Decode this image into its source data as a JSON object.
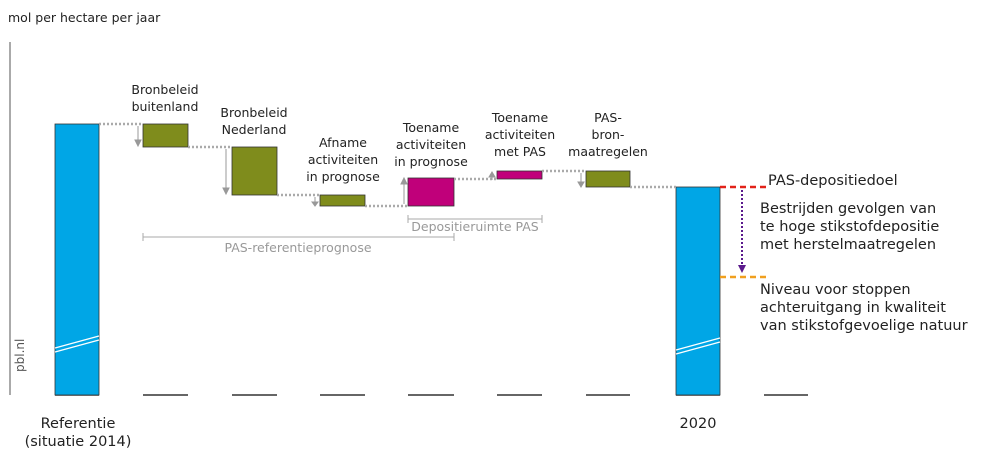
{
  "axis_label": "mol per hectare per jaar",
  "watermark": "pbl.nl",
  "categories": [
    [
      "Referentie",
      "(situatie 2014)"
    ],
    [
      "2020"
    ]
  ],
  "steps": [
    {
      "label": [
        "Bronbeleid",
        "buitenland"
      ]
    },
    {
      "label": [
        "Bronbeleid",
        "Nederland"
      ]
    },
    {
      "label": [
        "Afname",
        "activiteiten",
        "in prognose"
      ]
    },
    {
      "label": [
        "Toename",
        "activiteiten",
        "in prognose"
      ]
    },
    {
      "label": [
        "Toename",
        "activiteiten",
        "met PAS"
      ]
    },
    {
      "label": [
        "PAS-",
        "bron-",
        "maatregelen"
      ]
    }
  ],
  "brackets": [
    "PAS-referentieprognose",
    "Depositieruimte PAS"
  ],
  "annotations": {
    "target": "PAS-depositiedoel",
    "combat": [
      "Bestrijden gevolgen van",
      "te hoge stikstofdepositie",
      "met herstelmaatregelen"
    ],
    "level": [
      "Niveau voor stoppen",
      "achteruitgang in kwaliteit",
      "van stikstofgevoelige natuur"
    ]
  }
}
